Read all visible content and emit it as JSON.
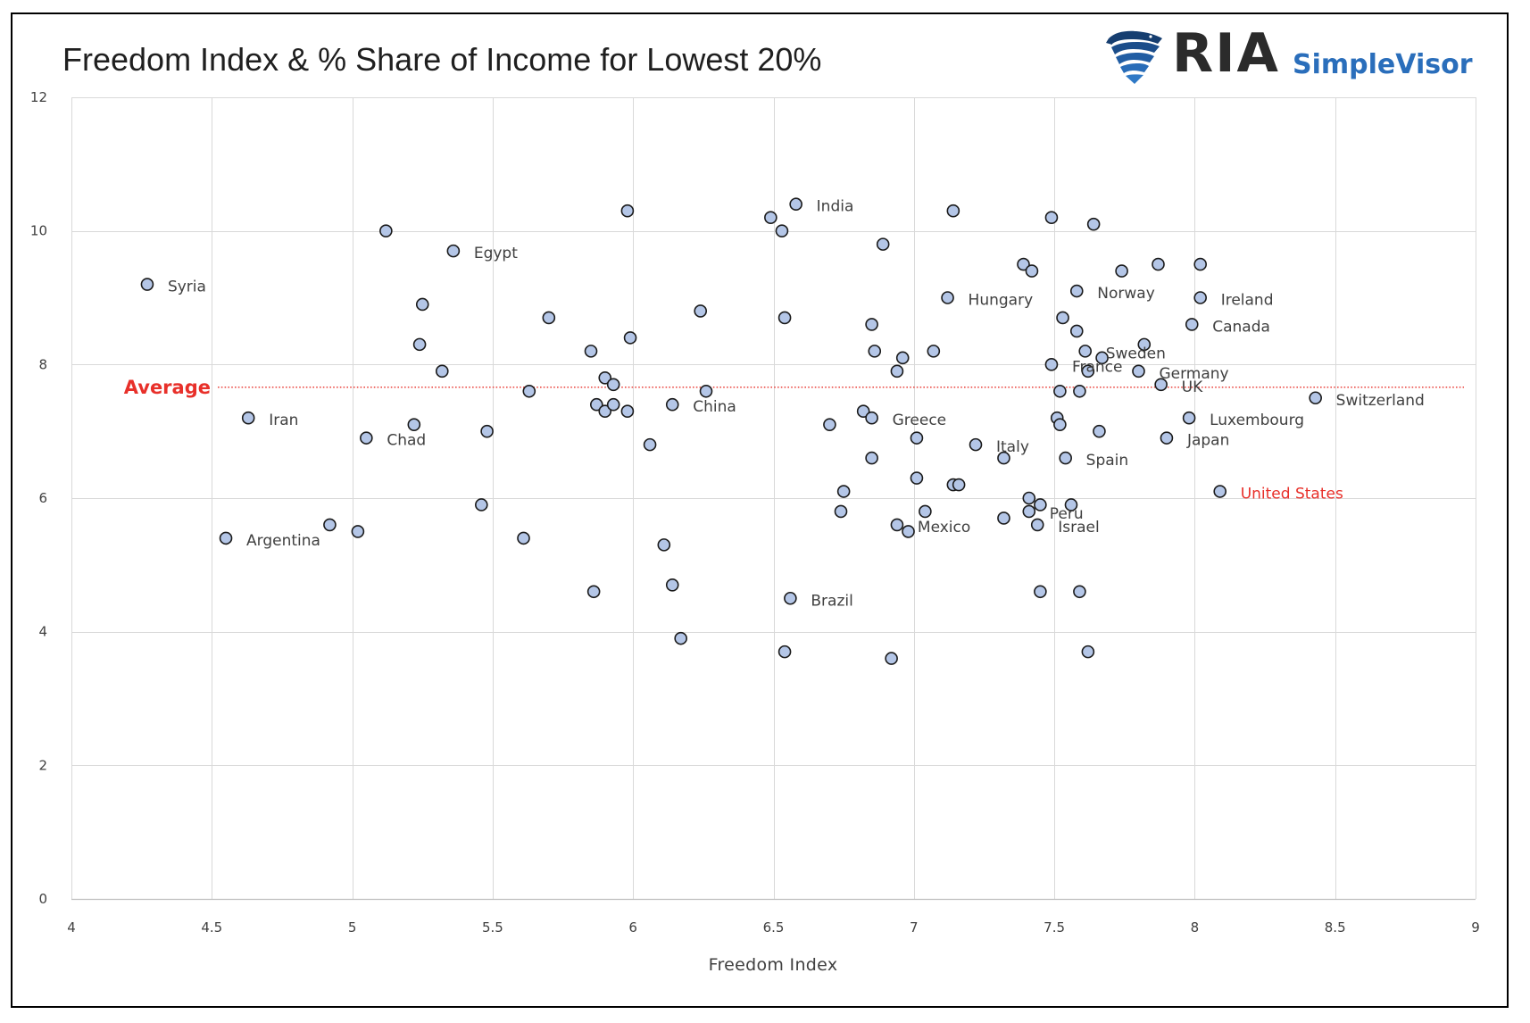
{
  "chart_data": {
    "type": "scatter",
    "title": "Freedom Index & % Share of Income for Lowest 20%",
    "xlabel": "Freedom Index",
    "ylabel": "",
    "xlim": [
      4,
      9
    ],
    "ylim": [
      0,
      12
    ],
    "x_ticks": [
      "4",
      "4.5",
      "5",
      "5.5",
      "6",
      "6.5",
      "7",
      "7.5",
      "8",
      "8.5",
      "9"
    ],
    "y_ticks": [
      "0",
      "2",
      "4",
      "6",
      "8",
      "10",
      "12"
    ],
    "grid": true,
    "reference_line": {
      "label": "Average",
      "y": 7.66
    },
    "points": [
      {
        "x": 4.27,
        "y": 9.2,
        "label": "Syria"
      },
      {
        "x": 4.55,
        "y": 5.4,
        "label": "Argentina"
      },
      {
        "x": 4.63,
        "y": 7.2,
        "label": "Iran"
      },
      {
        "x": 4.92,
        "y": 5.6
      },
      {
        "x": 5.02,
        "y": 5.5
      },
      {
        "x": 5.05,
        "y": 6.9,
        "label": "Chad"
      },
      {
        "x": 5.12,
        "y": 10.0
      },
      {
        "x": 5.22,
        "y": 7.1
      },
      {
        "x": 5.24,
        "y": 8.3
      },
      {
        "x": 5.25,
        "y": 8.9
      },
      {
        "x": 5.32,
        "y": 7.9
      },
      {
        "x": 5.36,
        "y": 9.7,
        "label": "Egypt"
      },
      {
        "x": 5.46,
        "y": 5.9
      },
      {
        "x": 5.48,
        "y": 7.0
      },
      {
        "x": 5.61,
        "y": 5.4
      },
      {
        "x": 5.63,
        "y": 7.6
      },
      {
        "x": 5.7,
        "y": 8.7
      },
      {
        "x": 5.85,
        "y": 8.2
      },
      {
        "x": 5.86,
        "y": 4.6
      },
      {
        "x": 5.87,
        "y": 7.4
      },
      {
        "x": 5.9,
        "y": 7.8
      },
      {
        "x": 5.9,
        "y": 7.3
      },
      {
        "x": 5.93,
        "y": 7.7
      },
      {
        "x": 5.93,
        "y": 7.4
      },
      {
        "x": 5.98,
        "y": 10.3
      },
      {
        "x": 5.98,
        "y": 7.3
      },
      {
        "x": 5.99,
        "y": 8.4
      },
      {
        "x": 6.06,
        "y": 6.8
      },
      {
        "x": 6.11,
        "y": 5.3
      },
      {
        "x": 6.14,
        "y": 7.4,
        "label": "China"
      },
      {
        "x": 6.14,
        "y": 4.7
      },
      {
        "x": 6.17,
        "y": 3.9
      },
      {
        "x": 6.24,
        "y": 8.8
      },
      {
        "x": 6.26,
        "y": 7.6
      },
      {
        "x": 6.49,
        "y": 10.2
      },
      {
        "x": 6.53,
        "y": 10.0
      },
      {
        "x": 6.54,
        "y": 8.7
      },
      {
        "x": 6.54,
        "y": 3.7
      },
      {
        "x": 6.56,
        "y": 4.5,
        "label": "Brazil"
      },
      {
        "x": 6.58,
        "y": 10.4,
        "label": "India"
      },
      {
        "x": 6.7,
        "y": 7.1
      },
      {
        "x": 6.74,
        "y": 5.8
      },
      {
        "x": 6.75,
        "y": 6.1
      },
      {
        "x": 6.82,
        "y": 7.3
      },
      {
        "x": 6.85,
        "y": 8.6
      },
      {
        "x": 6.85,
        "y": 7.2,
        "label": "Greece"
      },
      {
        "x": 6.85,
        "y": 6.6
      },
      {
        "x": 6.86,
        "y": 8.2
      },
      {
        "x": 6.89,
        "y": 9.8
      },
      {
        "x": 6.92,
        "y": 3.6
      },
      {
        "x": 6.94,
        "y": 7.9
      },
      {
        "x": 6.94,
        "y": 5.6,
        "label": "Mexico"
      },
      {
        "x": 6.96,
        "y": 8.1
      },
      {
        "x": 6.98,
        "y": 5.5
      },
      {
        "x": 7.01,
        "y": 6.9
      },
      {
        "x": 7.01,
        "y": 6.3
      },
      {
        "x": 7.04,
        "y": 5.8
      },
      {
        "x": 7.07,
        "y": 8.2
      },
      {
        "x": 7.12,
        "y": 9.0,
        "label": "Hungary"
      },
      {
        "x": 7.14,
        "y": 10.3
      },
      {
        "x": 7.14,
        "y": 6.2
      },
      {
        "x": 7.16,
        "y": 6.2
      },
      {
        "x": 7.22,
        "y": 6.8,
        "label": "Italy"
      },
      {
        "x": 7.32,
        "y": 6.6
      },
      {
        "x": 7.32,
        "y": 5.7
      },
      {
        "x": 7.39,
        "y": 9.5
      },
      {
        "x": 7.41,
        "y": 6.0
      },
      {
        "x": 7.41,
        "y": 5.8,
        "label": "Peru"
      },
      {
        "x": 7.42,
        "y": 9.4
      },
      {
        "x": 7.44,
        "y": 5.6,
        "label": "Israel"
      },
      {
        "x": 7.45,
        "y": 5.9
      },
      {
        "x": 7.45,
        "y": 4.6
      },
      {
        "x": 7.49,
        "y": 10.2
      },
      {
        "x": 7.49,
        "y": 8.0,
        "label": "France"
      },
      {
        "x": 7.51,
        "y": 7.2
      },
      {
        "x": 7.52,
        "y": 7.6
      },
      {
        "x": 7.52,
        "y": 7.1
      },
      {
        "x": 7.53,
        "y": 8.7
      },
      {
        "x": 7.54,
        "y": 6.6,
        "label": "Spain"
      },
      {
        "x": 7.56,
        "y": 5.9
      },
      {
        "x": 7.58,
        "y": 9.1,
        "label": "Norway"
      },
      {
        "x": 7.58,
        "y": 8.5
      },
      {
        "x": 7.59,
        "y": 7.6
      },
      {
        "x": 7.59,
        "y": 4.6
      },
      {
        "x": 7.61,
        "y": 8.2,
        "label": "Sweden"
      },
      {
        "x": 7.62,
        "y": 7.9
      },
      {
        "x": 7.62,
        "y": 3.7
      },
      {
        "x": 7.64,
        "y": 10.1
      },
      {
        "x": 7.66,
        "y": 7.0
      },
      {
        "x": 7.67,
        "y": 8.1
      },
      {
        "x": 7.74,
        "y": 9.4
      },
      {
        "x": 7.8,
        "y": 7.9,
        "label": "Germany"
      },
      {
        "x": 7.82,
        "y": 8.3
      },
      {
        "x": 7.87,
        "y": 9.5
      },
      {
        "x": 7.88,
        "y": 7.7,
        "label": "UK"
      },
      {
        "x": 7.9,
        "y": 6.9,
        "label": "Japan"
      },
      {
        "x": 7.98,
        "y": 7.2,
        "label": "Luxembourg"
      },
      {
        "x": 7.99,
        "y": 8.6,
        "label": "Canada"
      },
      {
        "x": 8.02,
        "y": 9.5
      },
      {
        "x": 8.02,
        "y": 9.0,
        "label": "Ireland"
      },
      {
        "x": 8.09,
        "y": 6.1,
        "label": "United States",
        "highlight": true
      },
      {
        "x": 8.43,
        "y": 7.5,
        "label": "Switzerland"
      }
    ]
  },
  "logo": {
    "brand": "RIA",
    "product": "SimpleVisor",
    "icon": "eagle-logo-icon"
  },
  "colors": {
    "point_fill": "#b4c6e7",
    "point_stroke": "#1a1a1a",
    "gridline": "#d9d9d9",
    "axis_line": "#bfbfbf",
    "reference_line": "#e8302a",
    "highlight_label": "#e8302a",
    "label_text": "#404040",
    "logo_blue": "#2a6ebb",
    "logo_dark": "#2b2b2b"
  }
}
